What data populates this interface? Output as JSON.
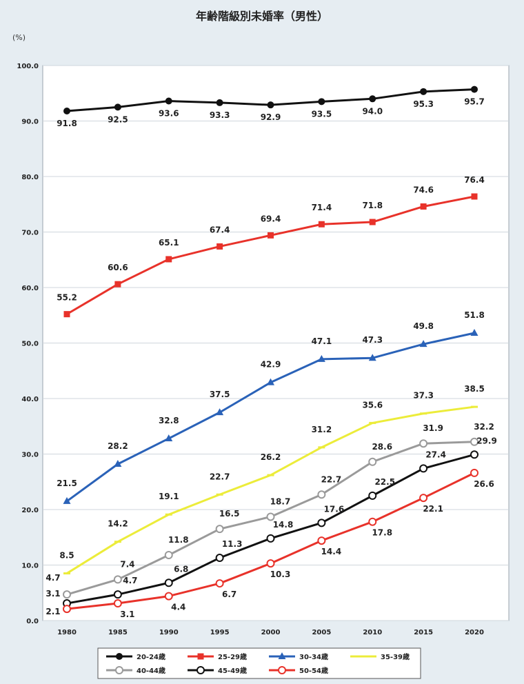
{
  "chart_data": {
    "type": "line",
    "title": "年齢階級別未婚率（男性）",
    "ylabel": "(%)",
    "xlabel": "",
    "ylim": [
      0,
      100
    ],
    "yticks": [
      "0.0",
      "10.0",
      "20.0",
      "30.0",
      "40.0",
      "50.0",
      "60.0",
      "70.0",
      "80.0",
      "90.0",
      "100.0"
    ],
    "categories": [
      "1980",
      "1985",
      "1990",
      "1995",
      "2000",
      "2005",
      "2010",
      "2015",
      "2020"
    ],
    "grid": true,
    "legend_position": "bottom",
    "series": [
      {
        "name": "20-24歳",
        "color": "#111111",
        "marker": "circle-filled",
        "values": [
          91.8,
          92.5,
          93.6,
          93.3,
          92.9,
          93.5,
          94.0,
          95.3,
          95.7
        ]
      },
      {
        "name": "25-29歳",
        "color": "#e8322a",
        "marker": "square",
        "values": [
          55.2,
          60.6,
          65.1,
          67.4,
          69.4,
          71.4,
          71.8,
          74.6,
          76.4
        ]
      },
      {
        "name": "30-34歳",
        "color": "#2a62b8",
        "marker": "triangle",
        "values": [
          21.5,
          28.2,
          32.8,
          37.5,
          42.9,
          47.1,
          47.3,
          49.8,
          51.8
        ]
      },
      {
        "name": "35-39歳",
        "color": "#ecec3a",
        "marker": "dash",
        "values": [
          8.5,
          14.2,
          19.1,
          22.7,
          26.2,
          31.2,
          35.6,
          37.3,
          38.5
        ]
      },
      {
        "name": "40-44歳",
        "color": "#9a9a9a",
        "marker": "circle-open",
        "values": [
          4.7,
          7.4,
          11.8,
          16.5,
          18.7,
          22.7,
          28.6,
          31.9,
          32.2
        ]
      },
      {
        "name": "45-49歳",
        "color": "#111111",
        "marker": "circle-open",
        "values": [
          3.1,
          4.7,
          6.8,
          11.3,
          14.8,
          17.6,
          22.5,
          27.4,
          29.9
        ]
      },
      {
        "name": "50-54歳",
        "color": "#e8322a",
        "marker": "circle-open",
        "values": [
          2.1,
          3.1,
          4.4,
          6.7,
          10.3,
          14.4,
          17.8,
          22.1,
          26.6
        ]
      }
    ]
  }
}
